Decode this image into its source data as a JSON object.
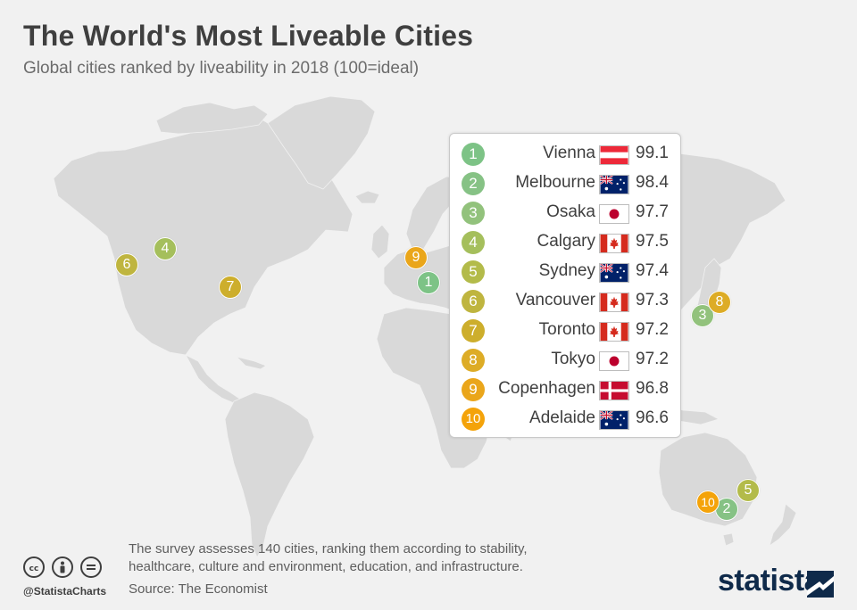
{
  "header": {
    "title": "The World's Most Liveable Cities",
    "subtitle": "Global cities ranked by liveability in 2018 (100=ideal)"
  },
  "colors": {
    "map_land": "#d9d9d9",
    "background": "#f1f1f1",
    "rank_colors": [
      "#7dc386",
      "#86c285",
      "#92c27c",
      "#a5bf5c",
      "#b3bb4a",
      "#bfb53f",
      "#cdae2c",
      "#ddac26",
      "#eaa61b",
      "#f4a30a"
    ]
  },
  "ranking": [
    {
      "rank": "1",
      "city": "Vienna",
      "score": "99.1",
      "flag": "austria-flag-icon"
    },
    {
      "rank": "2",
      "city": "Melbourne",
      "score": "98.4",
      "flag": "australia-flag-icon"
    },
    {
      "rank": "3",
      "city": "Osaka",
      "score": "97.7",
      "flag": "japan-flag-icon"
    },
    {
      "rank": "4",
      "city": "Calgary",
      "score": "97.5",
      "flag": "canada-flag-icon"
    },
    {
      "rank": "5",
      "city": "Sydney",
      "score": "97.4",
      "flag": "australia-flag-icon"
    },
    {
      "rank": "6",
      "city": "Vancouver",
      "score": "97.3",
      "flag": "canada-flag-icon"
    },
    {
      "rank": "7",
      "city": "Toronto",
      "score": "97.2",
      "flag": "canada-flag-icon"
    },
    {
      "rank": "8",
      "city": "Tokyo",
      "score": "97.2",
      "flag": "japan-flag-icon"
    },
    {
      "rank": "9",
      "city": "Copenhagen",
      "score": "96.8",
      "flag": "denmark-flag-icon"
    },
    {
      "rank": "10",
      "city": "Adelaide",
      "score": "96.6",
      "flag": "australia-flag-icon"
    }
  ],
  "footer": {
    "note": "The survey assesses 140 cities,  ranking them according to stability, healthcare, culture and environment, education, and infrastructure.",
    "source": "Source: The Economist",
    "handle": "@StatistaCharts",
    "brand": "statista",
    "license_icons": [
      "cc-icon",
      "attribution-icon",
      "no-derivatives-icon"
    ]
  }
}
